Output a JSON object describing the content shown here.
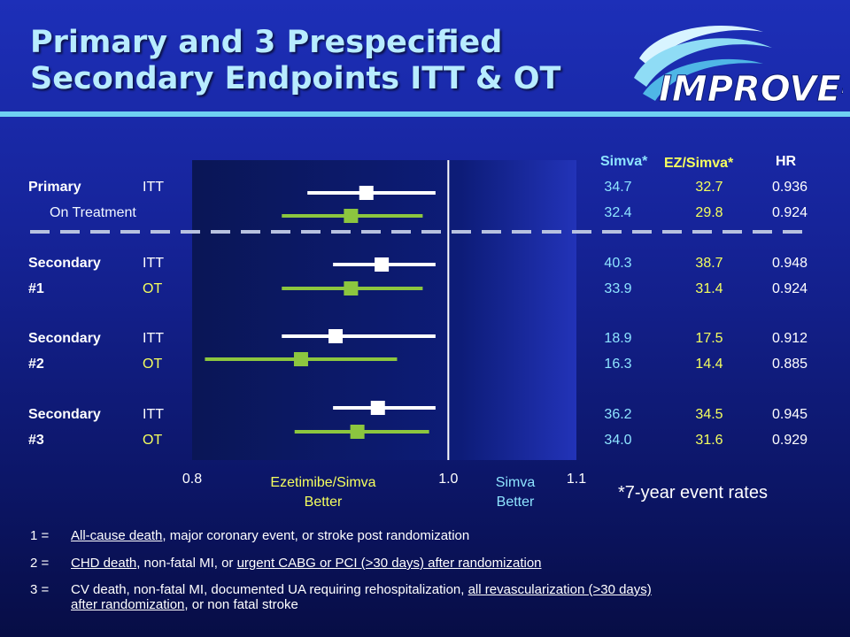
{
  "title": {
    "line1": "Primary and 3 Prespecified",
    "line2": "Secondary Endpoints ITT & OT"
  },
  "logo": {
    "text": "IMPROVE-IT",
    "icon": "swoosh-logo-icon"
  },
  "colors": {
    "itt": "#ffffff",
    "ot": "#8cc63f",
    "rule": "#6fd0f2",
    "title": "#b8ecff"
  },
  "columns": {
    "simva": "Simva*",
    "ez_simva": "EZ/Simva*",
    "hr": "HR"
  },
  "rows": [
    {
      "label": "Primary",
      "type": "ITT",
      "simva": "34.7",
      "ez": "32.7",
      "hr": "0.936"
    },
    {
      "label": "",
      "type": "On Treatment",
      "simva": "32.4",
      "ez": "29.8",
      "hr": "0.924"
    },
    {
      "label": "Secondary",
      "type": "ITT",
      "simva": "40.3",
      "ez": "38.7",
      "hr": "0.948"
    },
    {
      "label": "#1",
      "type": "OT",
      "simva": "33.9",
      "ez": "31.4",
      "hr": "0.924"
    },
    {
      "label": "Secondary",
      "type": "ITT",
      "simva": "18.9",
      "ez": "17.5",
      "hr": "0.912"
    },
    {
      "label": "#2",
      "type": "OT",
      "simva": "16.3",
      "ez": "14.4",
      "hr": "0.885"
    },
    {
      "label": "Secondary",
      "type": "ITT",
      "simva": "36.2",
      "ez": "34.5",
      "hr": "0.945"
    },
    {
      "label": "#3",
      "type": "OT",
      "simva": "34.0",
      "ez": "31.6",
      "hr": "0.929"
    }
  ],
  "chart_data": {
    "type": "forest",
    "xlim": [
      0.8,
      1.1
    ],
    "reference_line": 1.0,
    "ticks": [
      "0.8",
      "1.0",
      "1.1"
    ],
    "left_label": [
      "Ezetimibe/Simva",
      "Better"
    ],
    "right_label": [
      "Simva",
      "Better"
    ],
    "series": [
      {
        "name": "ITT",
        "color": "#ffffff",
        "points": [
          {
            "hr": 0.936,
            "lo": 0.89,
            "hi": 0.99
          },
          {
            "hr": 0.948,
            "lo": 0.91,
            "hi": 0.99
          },
          {
            "hr": 0.912,
            "lo": 0.87,
            "hi": 0.99
          },
          {
            "hr": 0.945,
            "lo": 0.91,
            "hi": 0.99
          }
        ]
      },
      {
        "name": "OT",
        "color": "#8cc63f",
        "points": [
          {
            "hr": 0.924,
            "lo": 0.87,
            "hi": 0.98
          },
          {
            "hr": 0.924,
            "lo": 0.87,
            "hi": 0.98
          },
          {
            "hr": 0.885,
            "lo": 0.81,
            "hi": 0.96
          },
          {
            "hr": 0.929,
            "lo": 0.88,
            "hi": 0.985
          }
        ]
      }
    ]
  },
  "star_note": "*7-year event rates",
  "footnotes": [
    {
      "num": "1 =",
      "parts": [
        {
          "t": "All-cause death",
          "u": true
        },
        {
          "t": ", major coronary event, or stroke post randomization",
          "u": false
        }
      ]
    },
    {
      "num": "2 =",
      "parts": [
        {
          "t": "CHD death",
          "u": true
        },
        {
          "t": ", non-fatal MI, or ",
          "u": false
        },
        {
          "t": "urgent CABG or PCI (>30 days) after randomization",
          "u": true
        }
      ]
    },
    {
      "num": "3 =",
      "parts": [
        {
          "t": "CV death, non-fatal MI, documented UA requiring rehospitalization, ",
          "u": false
        },
        {
          "t": "all revascularization (>30 days)",
          "u": true
        }
      ],
      "line2": [
        {
          "t": "after randomization",
          "u": true
        },
        {
          "t": ", or non fatal stroke",
          "u": false
        }
      ]
    }
  ]
}
